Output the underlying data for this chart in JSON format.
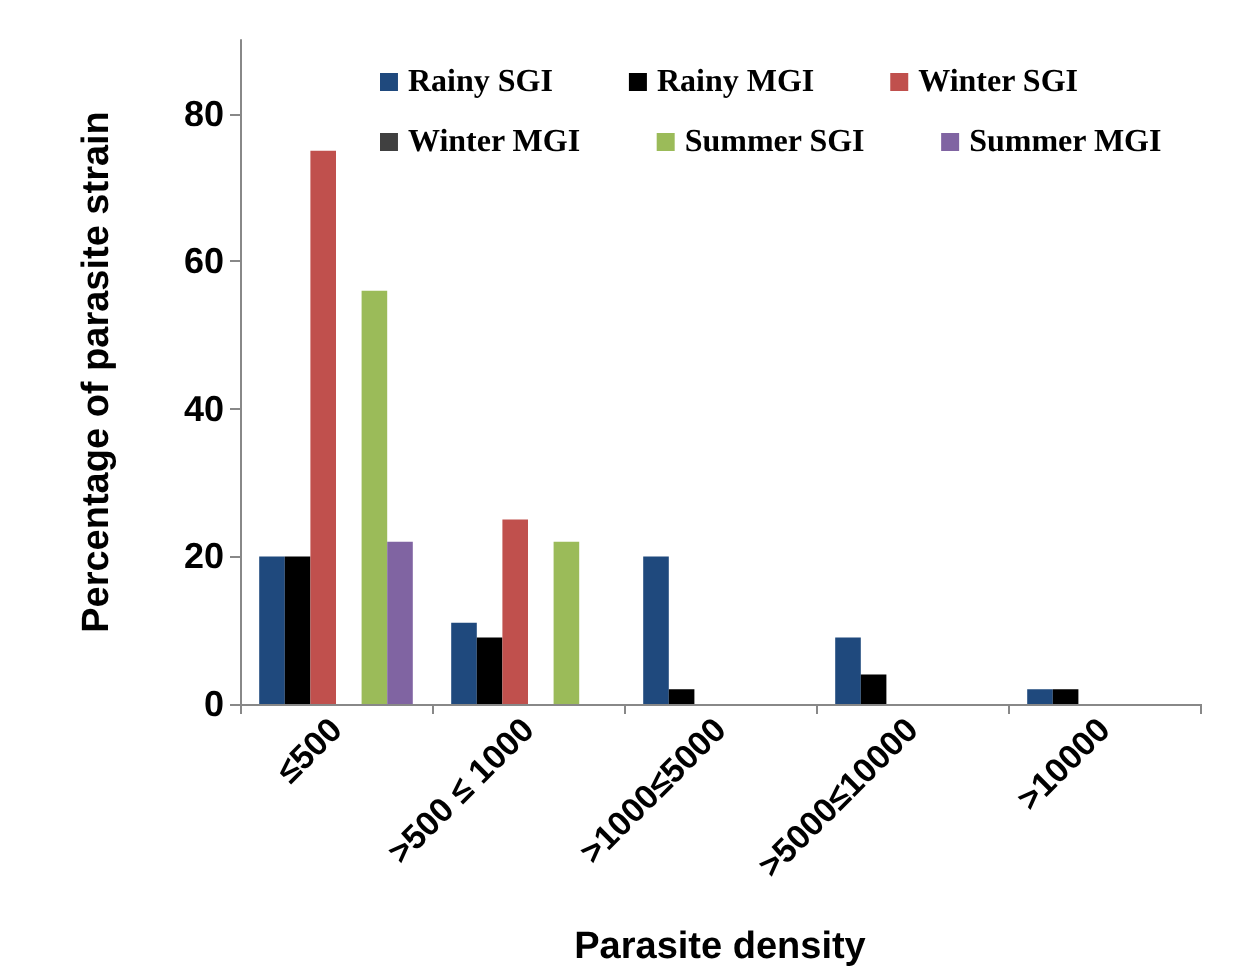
{
  "chart_data": {
    "type": "bar",
    "xlabel": "Parasite density",
    "ylabel": "Percentage of parasite strain",
    "categories": [
      "≤500",
      ">500 ≤ 1000",
      ">1000≤5000",
      ">5000≤10000",
      ">10000"
    ],
    "ylim": [
      0,
      90
    ],
    "yticks": [
      0,
      20,
      40,
      60,
      80
    ],
    "grid": false,
    "legend": "top right",
    "series": [
      {
        "name": "Rainy SGI",
        "color": "#1f497d",
        "values": [
          20,
          11,
          20,
          9,
          2
        ]
      },
      {
        "name": "Rainy MGI",
        "color": "#000000",
        "values": [
          20,
          9,
          2,
          4,
          2
        ]
      },
      {
        "name": "Winter SGI",
        "color": "#c0504d",
        "values": [
          75,
          25,
          0,
          0,
          0
        ]
      },
      {
        "name": "Winter MGI",
        "color": "#404040",
        "values": [
          0,
          0,
          0,
          0,
          0
        ]
      },
      {
        "name": "Summer SGI",
        "color": "#9bbb59",
        "values": [
          56,
          22,
          0,
          0,
          0
        ]
      },
      {
        "name": "Summer MGI",
        "color": "#8064a2",
        "values": [
          22,
          0,
          0,
          0,
          0
        ]
      }
    ]
  }
}
